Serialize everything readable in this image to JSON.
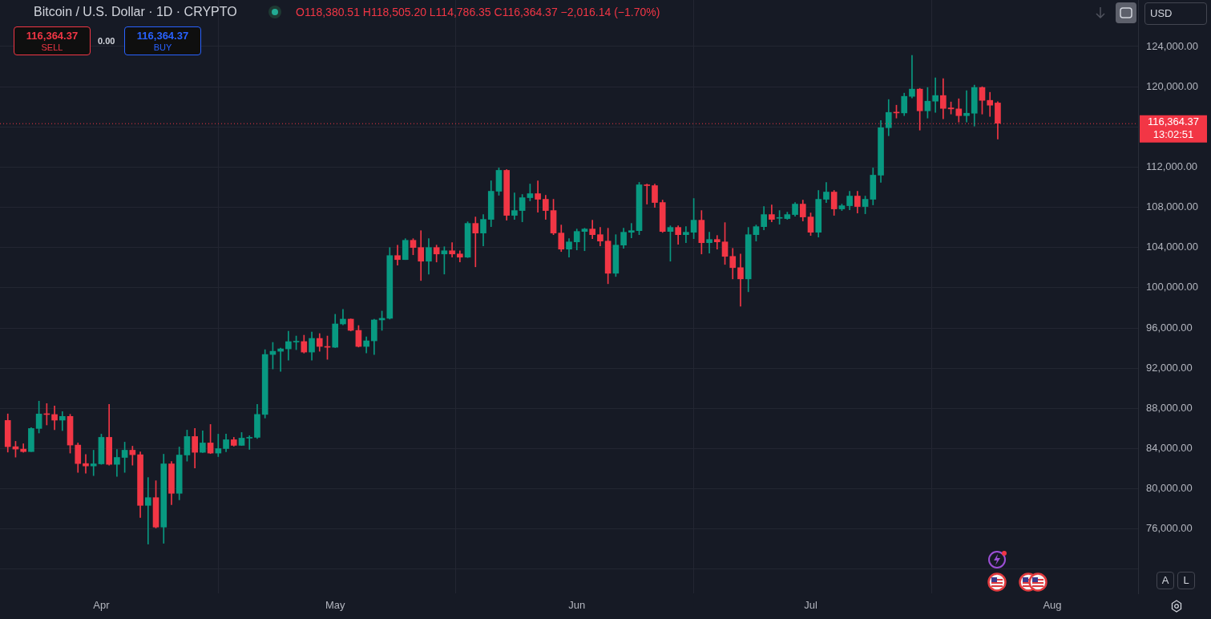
{
  "chart_data": {
    "type": "candlestick",
    "title": "Bitcoin / U.S. Dollar · 1D · CRYPTO",
    "annotations": [
      "O118,380.51 H118,505.20 L114,786.35 C116,364.37 −2,016.14 (−1.70%)",
      "116,364.37",
      "SELL",
      "0.00",
      "116,364.37",
      "BUY",
      "USD",
      "A",
      "L",
      "13:02:51"
    ],
    "x": [
      "--03-20",
      "--03-21",
      "--03-22",
      "--03-23",
      "--03-24",
      "--03-25",
      "--03-26",
      "--03-27",
      "--03-28",
      "--03-29",
      "--03-30",
      "--03-31",
      "--04-01",
      "--04-02",
      "--04-03",
      "--04-04",
      "--04-05",
      "--04-06",
      "--04-07",
      "--04-08",
      "--04-09",
      "--04-10",
      "--04-11",
      "--04-12",
      "--04-13",
      "--04-14",
      "--04-15",
      "--04-16",
      "--04-17",
      "--04-18",
      "--04-19",
      "--04-20",
      "--04-21",
      "--04-22",
      "--04-23",
      "--04-24",
      "--04-25",
      "--04-26",
      "--04-27",
      "--04-28",
      "--04-29",
      "--04-30",
      "--05-01",
      "--05-02",
      "--05-03",
      "--05-04",
      "--05-05",
      "--05-06",
      "--05-07",
      "--05-08",
      "--05-09",
      "--05-10",
      "--05-11",
      "--05-12",
      "--05-13",
      "--05-14",
      "--05-15",
      "--05-16",
      "--05-17",
      "--05-18",
      "--05-19",
      "--05-20",
      "--05-21",
      "--05-22",
      "--05-23",
      "--05-24",
      "--05-25",
      "--05-26",
      "--05-27",
      "--05-28",
      "--05-29",
      "--05-30",
      "--05-31",
      "--06-01",
      "--06-02",
      "--06-03",
      "--06-04",
      "--06-05",
      "--06-06",
      "--06-07",
      "--06-08",
      "--06-09",
      "--06-10",
      "--06-11",
      "--06-12",
      "--06-13",
      "--06-14",
      "--06-15",
      "--06-16",
      "--06-17",
      "--06-18",
      "--06-19",
      "--06-20",
      "--06-21",
      "--06-22",
      "--06-23",
      "--06-24",
      "--06-25",
      "--06-26",
      "--06-27",
      "--06-28",
      "--06-29",
      "--06-30",
      "--07-01",
      "--07-02",
      "--07-03",
      "--07-04",
      "--07-05",
      "--07-06",
      "--07-07",
      "--07-08",
      "--07-09",
      "--07-10",
      "--07-11",
      "--07-12",
      "--07-13",
      "--07-14",
      "--07-15",
      "--07-16",
      "--07-17",
      "--07-18",
      "--07-19",
      "--07-20",
      "--07-21",
      "--07-22",
      "--07-23",
      "--07-24",
      "--07-25"
    ],
    "ohlc": [
      [
        86800,
        87450,
        83650,
        84190
      ],
      [
        84190,
        84720,
        83150,
        83950
      ],
      [
        83950,
        84480,
        83630,
        83700
      ],
      [
        83700,
        86080,
        83700,
        86000
      ],
      [
        86000,
        88720,
        85550,
        87440
      ],
      [
        87440,
        88480,
        86350,
        87390
      ],
      [
        87390,
        88240,
        85870,
        86830
      ],
      [
        86830,
        87680,
        85790,
        87200
      ],
      [
        87200,
        87410,
        83550,
        84350
      ],
      [
        84350,
        84560,
        81630,
        82510
      ],
      [
        82510,
        83410,
        81550,
        82270
      ],
      [
        82270,
        83840,
        81310,
        82480
      ],
      [
        82480,
        85440,
        82430,
        85120
      ],
      [
        85120,
        88400,
        82350,
        82430
      ],
      [
        82430,
        83920,
        81230,
        83120
      ],
      [
        83120,
        84640,
        81630,
        83840
      ],
      [
        83840,
        84240,
        82350,
        83390
      ],
      [
        83390,
        83680,
        77150,
        78350
      ],
      [
        78350,
        81120,
        74500,
        79120
      ],
      [
        79120,
        80800,
        76100,
        76190
      ],
      [
        76190,
        83440,
        74580,
        82480
      ],
      [
        82480,
        82720,
        78430,
        79550
      ],
      [
        79550,
        84160,
        78900,
        83360
      ],
      [
        83360,
        85840,
        82750,
        85200
      ],
      [
        85200,
        86000,
        82070,
        83630
      ],
      [
        83630,
        85760,
        83600,
        84560
      ],
      [
        84560,
        86400,
        83500,
        83550
      ],
      [
        83550,
        85440,
        83200,
        84000
      ],
      [
        84000,
        85440,
        83680,
        84880
      ],
      [
        84880,
        85120,
        84240,
        84320
      ],
      [
        84320,
        85600,
        84300,
        85040
      ],
      [
        85040,
        85280,
        83920,
        85120
      ],
      [
        85120,
        88400,
        85000,
        87400
      ],
      [
        87400,
        93840,
        87040,
        93360
      ],
      [
        93360,
        94560,
        91920,
        93680
      ],
      [
        93680,
        94000,
        91680,
        93920
      ],
      [
        93920,
        95680,
        92800,
        94640
      ],
      [
        94600,
        95200,
        93840,
        94650
      ],
      [
        94650,
        95280,
        93500,
        93600
      ],
      [
        93600,
        95600,
        92800,
        94960
      ],
      [
        94960,
        95440,
        93680,
        94160
      ],
      [
        94160,
        95200,
        92880,
        94080
      ],
      [
        94080,
        97360,
        94050,
        96400
      ],
      [
        96400,
        97840,
        96300,
        96880
      ],
      [
        96880,
        96900,
        95700,
        95760
      ],
      [
        95760,
        96240,
        94100,
        94160
      ],
      [
        94160,
        95120,
        93520,
        94720
      ],
      [
        94720,
        96880,
        93360,
        96800
      ],
      [
        96800,
        97680,
        95760,
        96960
      ],
      [
        96960,
        104000,
        96880,
        103200
      ],
      [
        103200,
        104240,
        102240,
        102800
      ],
      [
        102800,
        104880,
        102800,
        104720
      ],
      [
        104720,
        104880,
        103280,
        104000
      ],
      [
        104000,
        105680,
        100720,
        102640
      ],
      [
        102640,
        104880,
        101360,
        104000
      ],
      [
        104000,
        104240,
        102560,
        103360
      ],
      [
        103360,
        104080,
        101360,
        103680
      ],
      [
        103680,
        104480,
        103040,
        103360
      ],
      [
        103360,
        103680,
        102560,
        103040
      ],
      [
        103040,
        106560,
        103000,
        106400
      ],
      [
        106400,
        107040,
        102080,
        105440
      ],
      [
        105440,
        107280,
        104160,
        106800
      ],
      [
        106800,
        110640,
        106080,
        109600
      ],
      [
        109600,
        111920,
        109200,
        111680
      ],
      [
        111680,
        111760,
        106720,
        107200
      ],
      [
        107200,
        109440,
        106800,
        107680
      ],
      [
        107680,
        109280,
        106560,
        108960
      ],
      [
        108960,
        110320,
        108640,
        109360
      ],
      [
        109360,
        110640,
        107520,
        108800
      ],
      [
        108800,
        109200,
        106800,
        107680
      ],
      [
        107680,
        108800,
        105280,
        105440
      ],
      [
        105440,
        106240,
        103600,
        103840
      ],
      [
        103840,
        104880,
        103040,
        104560
      ],
      [
        104560,
        105840,
        103760,
        105600
      ],
      [
        105600,
        105920,
        103680,
        105840
      ],
      [
        105840,
        106720,
        104880,
        105280
      ],
      [
        105280,
        106000,
        104160,
        104640
      ],
      [
        104640,
        105920,
        100400,
        101440
      ],
      [
        101440,
        105280,
        101120,
        104240
      ],
      [
        104240,
        105920,
        103920,
        105520
      ],
      [
        105520,
        106400,
        104960,
        105680
      ],
      [
        105680,
        110480,
        105280,
        110240
      ],
      [
        110240,
        110320,
        108320,
        110160
      ],
      [
        110160,
        110320,
        108000,
        108480
      ],
      [
        108480,
        108720,
        105500,
        105600
      ],
      [
        105600,
        106160,
        102640,
        106000
      ],
      [
        106000,
        106160,
        104320,
        105280
      ],
      [
        105280,
        106080,
        104480,
        105520
      ],
      [
        105520,
        108880,
        104880,
        106720
      ],
      [
        106720,
        107680,
        103360,
        104480
      ],
      [
        104480,
        105520,
        103440,
        104800
      ],
      [
        104800,
        105200,
        103840,
        104560
      ],
      [
        104560,
        106480,
        102320,
        103120
      ],
      [
        103120,
        103920,
        100880,
        102000
      ],
      [
        102000,
        103360,
        98160,
        100880
      ],
      [
        100880,
        106000,
        99600,
        105280
      ],
      [
        105280,
        106240,
        104640,
        106080
      ],
      [
        106080,
        108080,
        105760,
        107280
      ],
      [
        107280,
        108240,
        106560,
        106800
      ],
      [
        106910,
        107680,
        106320,
        106990
      ],
      [
        106880,
        107520,
        106800,
        107280
      ],
      [
        107280,
        108480,
        107120,
        108320
      ],
      [
        108320,
        108720,
        106640,
        107040
      ],
      [
        107040,
        107440,
        105200,
        105520
      ],
      [
        105520,
        109680,
        105040,
        108800
      ],
      [
        108800,
        110480,
        108480,
        109520
      ],
      [
        109520,
        109680,
        107200,
        107840
      ],
      [
        107840,
        108320,
        107680,
        108160
      ],
      [
        108160,
        109600,
        107760,
        109120
      ],
      [
        109120,
        109600,
        107440,
        108080
      ],
      [
        108080,
        109120,
        107360,
        108800
      ],
      [
        108800,
        111920,
        108240,
        111200
      ],
      [
        111200,
        116640,
        110480,
        115920
      ],
      [
        115920,
        118720,
        115120,
        117440
      ],
      [
        117440,
        118160,
        116880,
        117390
      ],
      [
        117390,
        119360,
        117120,
        119040
      ],
      [
        119040,
        123120,
        118880,
        119760
      ],
      [
        119760,
        119840,
        115680,
        117600
      ],
      [
        117600,
        119920,
        116880,
        118560
      ],
      [
        118560,
        120880,
        117440,
        119120
      ],
      [
        119120,
        120800,
        116800,
        117840
      ],
      [
        117890,
        118480,
        117280,
        117790
      ],
      [
        117790,
        118800,
        116480,
        117120
      ],
      [
        117120,
        119600,
        116480,
        117360
      ],
      [
        117360,
        120160,
        116080,
        119920
      ],
      [
        119920,
        120000,
        117280,
        118640
      ],
      [
        118640,
        119440,
        117040,
        118160
      ],
      [
        118380.51,
        118505.2,
        114786.35,
        116364.37
      ]
    ],
    "xlim": [
      "--03-19",
      "--08-12"
    ],
    "xticks": [
      {
        "value": "--04-01",
        "label": "Apr"
      },
      {
        "value": "--05-01",
        "label": "May"
      },
      {
        "value": "--06-01",
        "label": "Jun"
      },
      {
        "value": "--07-01",
        "label": "Jul"
      },
      {
        "value": "--08-01",
        "label": "Aug"
      }
    ],
    "ylim": [
      69600,
      128800
    ],
    "yticks": [
      {
        "value": 72000,
        "label": null
      },
      {
        "value": 76000,
        "label": "76,000.00"
      },
      {
        "value": 80000,
        "label": "80,000.00"
      },
      {
        "value": 84000,
        "label": "84,000.00"
      },
      {
        "value": 88000,
        "label": "88,000.00"
      },
      {
        "value": 92000,
        "label": "92,000.00"
      },
      {
        "value": 96000,
        "label": "96,000.00"
      },
      {
        "value": 100000,
        "label": "100,000.00"
      },
      {
        "value": 104000,
        "label": "104,000.00"
      },
      {
        "value": 108000,
        "label": "108,000.00"
      },
      {
        "value": 112000,
        "label": "112,000.00"
      },
      {
        "value": 116000,
        "label": null
      },
      {
        "value": 120000,
        "label": "120,000.00"
      },
      {
        "value": 124000,
        "label": "124,000.00"
      }
    ],
    "ref_lines": [
      {
        "axis": "y",
        "value": 116364.37,
        "label": "116,364.37",
        "color": "#f23645",
        "line_style": "dotted"
      }
    ],
    "grid": true
  }
}
